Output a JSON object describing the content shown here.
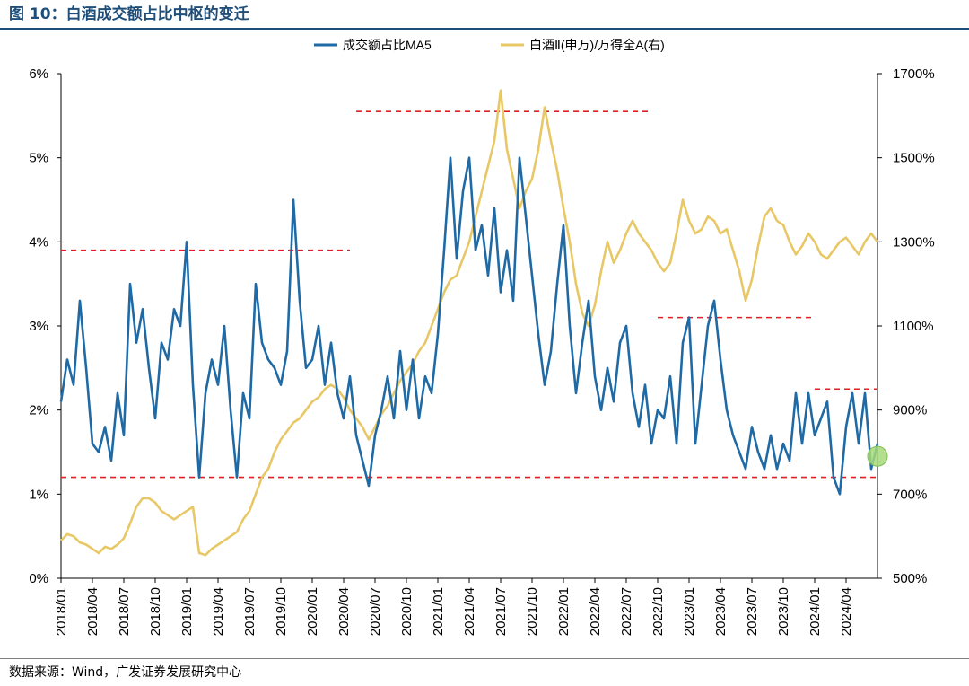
{
  "figure": {
    "title": "图 10：白酒成交额占比中枢的变迁",
    "source": "数据来源：Wind，广发证券发展研究中心"
  },
  "chart_data": {
    "type": "line",
    "legend_position": "top-center",
    "grid": false,
    "x_ticks": [
      "2018/01",
      "2018/04",
      "2018/07",
      "2018/10",
      "2019/01",
      "2019/04",
      "2019/07",
      "2019/10",
      "2020/01",
      "2020/04",
      "2020/07",
      "2020/10",
      "2021/01",
      "2021/04",
      "2021/07",
      "2021/10",
      "2022/01",
      "2022/04",
      "2022/07",
      "2022/10",
      "2023/01",
      "2023/04",
      "2023/07",
      "2023/10",
      "2024/01",
      "2024/04"
    ],
    "x_range": [
      2018.0,
      2024.5
    ],
    "y_left": {
      "ticks": [
        "0%",
        "1%",
        "2%",
        "3%",
        "4%",
        "5%",
        "6%"
      ],
      "range": [
        0,
        6
      ]
    },
    "y_right": {
      "ticks": [
        "500%",
        "700%",
        "900%",
        "1100%",
        "1300%",
        "1500%",
        "1700%"
      ],
      "range": [
        500,
        1700
      ]
    },
    "series": [
      {
        "name": "成交额占比MA5",
        "axis": "left",
        "color": "#1f6aa5",
        "points": [
          [
            2018.0,
            2.1
          ],
          [
            2018.05,
            2.6
          ],
          [
            2018.1,
            2.3
          ],
          [
            2018.15,
            3.3
          ],
          [
            2018.2,
            2.5
          ],
          [
            2018.25,
            1.6
          ],
          [
            2018.3,
            1.5
          ],
          [
            2018.35,
            1.8
          ],
          [
            2018.4,
            1.4
          ],
          [
            2018.45,
            2.2
          ],
          [
            2018.5,
            1.7
          ],
          [
            2018.55,
            3.5
          ],
          [
            2018.6,
            2.8
          ],
          [
            2018.65,
            3.2
          ],
          [
            2018.7,
            2.5
          ],
          [
            2018.75,
            1.9
          ],
          [
            2018.8,
            2.8
          ],
          [
            2018.85,
            2.6
          ],
          [
            2018.9,
            3.2
          ],
          [
            2018.95,
            3.0
          ],
          [
            2019.0,
            4.0
          ],
          [
            2019.05,
            2.3
          ],
          [
            2019.1,
            1.2
          ],
          [
            2019.15,
            2.2
          ],
          [
            2019.2,
            2.6
          ],
          [
            2019.25,
            2.3
          ],
          [
            2019.3,
            3.0
          ],
          [
            2019.35,
            2.0
          ],
          [
            2019.4,
            1.2
          ],
          [
            2019.45,
            2.2
          ],
          [
            2019.5,
            1.9
          ],
          [
            2019.55,
            3.5
          ],
          [
            2019.6,
            2.8
          ],
          [
            2019.65,
            2.6
          ],
          [
            2019.7,
            2.5
          ],
          [
            2019.75,
            2.3
          ],
          [
            2019.8,
            2.7
          ],
          [
            2019.85,
            4.5
          ],
          [
            2019.9,
            3.3
          ],
          [
            2019.95,
            2.5
          ],
          [
            2020.0,
            2.6
          ],
          [
            2020.05,
            3.0
          ],
          [
            2020.1,
            2.3
          ],
          [
            2020.15,
            2.8
          ],
          [
            2020.2,
            2.2
          ],
          [
            2020.25,
            1.9
          ],
          [
            2020.3,
            2.4
          ],
          [
            2020.35,
            1.7
          ],
          [
            2020.4,
            1.4
          ],
          [
            2020.45,
            1.1
          ],
          [
            2020.5,
            1.7
          ],
          [
            2020.55,
            2.0
          ],
          [
            2020.6,
            2.4
          ],
          [
            2020.65,
            1.9
          ],
          [
            2020.7,
            2.7
          ],
          [
            2020.75,
            2.0
          ],
          [
            2020.8,
            2.6
          ],
          [
            2020.85,
            1.9
          ],
          [
            2020.9,
            2.4
          ],
          [
            2020.95,
            2.2
          ],
          [
            2021.0,
            2.9
          ],
          [
            2021.05,
            3.9
          ],
          [
            2021.1,
            5.0
          ],
          [
            2021.15,
            3.8
          ],
          [
            2021.2,
            4.6
          ],
          [
            2021.25,
            5.0
          ],
          [
            2021.3,
            3.9
          ],
          [
            2021.35,
            4.2
          ],
          [
            2021.4,
            3.6
          ],
          [
            2021.45,
            4.4
          ],
          [
            2021.5,
            3.4
          ],
          [
            2021.55,
            3.9
          ],
          [
            2021.6,
            3.3
          ],
          [
            2021.65,
            5.0
          ],
          [
            2021.7,
            4.3
          ],
          [
            2021.75,
            3.6
          ],
          [
            2021.8,
            2.9
          ],
          [
            2021.85,
            2.3
          ],
          [
            2021.9,
            2.7
          ],
          [
            2021.95,
            3.5
          ],
          [
            2022.0,
            4.2
          ],
          [
            2022.05,
            3.0
          ],
          [
            2022.1,
            2.2
          ],
          [
            2022.15,
            2.8
          ],
          [
            2022.2,
            3.3
          ],
          [
            2022.25,
            2.4
          ],
          [
            2022.3,
            2.0
          ],
          [
            2022.35,
            2.5
          ],
          [
            2022.4,
            2.1
          ],
          [
            2022.45,
            2.8
          ],
          [
            2022.5,
            3.0
          ],
          [
            2022.55,
            2.2
          ],
          [
            2022.6,
            1.8
          ],
          [
            2022.65,
            2.3
          ],
          [
            2022.7,
            1.6
          ],
          [
            2022.75,
            2.0
          ],
          [
            2022.8,
            1.9
          ],
          [
            2022.85,
            2.4
          ],
          [
            2022.9,
            1.6
          ],
          [
            2022.95,
            2.8
          ],
          [
            2023.0,
            3.1
          ],
          [
            2023.05,
            1.6
          ],
          [
            2023.1,
            2.3
          ],
          [
            2023.15,
            3.0
          ],
          [
            2023.2,
            3.3
          ],
          [
            2023.25,
            2.6
          ],
          [
            2023.3,
            2.0
          ],
          [
            2023.35,
            1.7
          ],
          [
            2023.4,
            1.5
          ],
          [
            2023.45,
            1.3
          ],
          [
            2023.5,
            1.8
          ],
          [
            2023.55,
            1.5
          ],
          [
            2023.6,
            1.3
          ],
          [
            2023.65,
            1.7
          ],
          [
            2023.7,
            1.3
          ],
          [
            2023.75,
            1.6
          ],
          [
            2023.8,
            1.4
          ],
          [
            2023.85,
            2.2
          ],
          [
            2023.9,
            1.6
          ],
          [
            2023.95,
            2.2
          ],
          [
            2024.0,
            1.7
          ],
          [
            2024.05,
            1.9
          ],
          [
            2024.1,
            2.1
          ],
          [
            2024.15,
            1.2
          ],
          [
            2024.2,
            1.0
          ],
          [
            2024.25,
            1.8
          ],
          [
            2024.3,
            2.2
          ],
          [
            2024.35,
            1.6
          ],
          [
            2024.4,
            2.2
          ],
          [
            2024.45,
            1.3
          ],
          [
            2024.5,
            1.6
          ]
        ]
      },
      {
        "name": "白酒Ⅱ(申万)/万得全A(右)",
        "axis": "right",
        "color": "#e8c766",
        "points": [
          [
            2018.0,
            590
          ],
          [
            2018.05,
            605
          ],
          [
            2018.1,
            600
          ],
          [
            2018.15,
            585
          ],
          [
            2018.2,
            580
          ],
          [
            2018.25,
            570
          ],
          [
            2018.3,
            560
          ],
          [
            2018.35,
            575
          ],
          [
            2018.4,
            570
          ],
          [
            2018.45,
            580
          ],
          [
            2018.5,
            595
          ],
          [
            2018.55,
            630
          ],
          [
            2018.6,
            670
          ],
          [
            2018.65,
            690
          ],
          [
            2018.7,
            690
          ],
          [
            2018.75,
            680
          ],
          [
            2018.8,
            660
          ],
          [
            2018.85,
            650
          ],
          [
            2018.9,
            640
          ],
          [
            2018.95,
            650
          ],
          [
            2019.0,
            660
          ],
          [
            2019.05,
            670
          ],
          [
            2019.1,
            560
          ],
          [
            2019.15,
            555
          ],
          [
            2019.2,
            570
          ],
          [
            2019.25,
            580
          ],
          [
            2019.3,
            590
          ],
          [
            2019.35,
            600
          ],
          [
            2019.4,
            610
          ],
          [
            2019.45,
            640
          ],
          [
            2019.5,
            660
          ],
          [
            2019.55,
            700
          ],
          [
            2019.6,
            740
          ],
          [
            2019.65,
            760
          ],
          [
            2019.7,
            800
          ],
          [
            2019.75,
            830
          ],
          [
            2019.8,
            850
          ],
          [
            2019.85,
            870
          ],
          [
            2019.9,
            880
          ],
          [
            2019.95,
            900
          ],
          [
            2020.0,
            920
          ],
          [
            2020.05,
            930
          ],
          [
            2020.1,
            950
          ],
          [
            2020.15,
            960
          ],
          [
            2020.2,
            950
          ],
          [
            2020.25,
            930
          ],
          [
            2020.3,
            900
          ],
          [
            2020.35,
            880
          ],
          [
            2020.4,
            860
          ],
          [
            2020.45,
            830
          ],
          [
            2020.5,
            860
          ],
          [
            2020.55,
            890
          ],
          [
            2020.6,
            910
          ],
          [
            2020.65,
            940
          ],
          [
            2020.7,
            970
          ],
          [
            2020.75,
            990
          ],
          [
            2020.8,
            1010
          ],
          [
            2020.85,
            1040
          ],
          [
            2020.9,
            1060
          ],
          [
            2020.95,
            1100
          ],
          [
            2021.0,
            1140
          ],
          [
            2021.05,
            1180
          ],
          [
            2021.1,
            1210
          ],
          [
            2021.15,
            1220
          ],
          [
            2021.2,
            1260
          ],
          [
            2021.25,
            1300
          ],
          [
            2021.3,
            1360
          ],
          [
            2021.35,
            1420
          ],
          [
            2021.4,
            1480
          ],
          [
            2021.45,
            1540
          ],
          [
            2021.5,
            1660
          ],
          [
            2021.55,
            1520
          ],
          [
            2021.6,
            1450
          ],
          [
            2021.65,
            1380
          ],
          [
            2021.7,
            1420
          ],
          [
            2021.75,
            1450
          ],
          [
            2021.8,
            1520
          ],
          [
            2021.85,
            1620
          ],
          [
            2021.9,
            1540
          ],
          [
            2021.95,
            1470
          ],
          [
            2022.0,
            1380
          ],
          [
            2022.05,
            1300
          ],
          [
            2022.1,
            1200
          ],
          [
            2022.15,
            1130
          ],
          [
            2022.2,
            1100
          ],
          [
            2022.25,
            1150
          ],
          [
            2022.3,
            1230
          ],
          [
            2022.35,
            1300
          ],
          [
            2022.4,
            1250
          ],
          [
            2022.45,
            1280
          ],
          [
            2022.5,
            1320
          ],
          [
            2022.55,
            1350
          ],
          [
            2022.6,
            1320
          ],
          [
            2022.65,
            1300
          ],
          [
            2022.7,
            1280
          ],
          [
            2022.75,
            1250
          ],
          [
            2022.8,
            1230
          ],
          [
            2022.85,
            1250
          ],
          [
            2022.9,
            1320
          ],
          [
            2022.95,
            1400
          ],
          [
            2023.0,
            1350
          ],
          [
            2023.05,
            1320
          ],
          [
            2023.1,
            1330
          ],
          [
            2023.15,
            1360
          ],
          [
            2023.2,
            1350
          ],
          [
            2023.25,
            1320
          ],
          [
            2023.3,
            1330
          ],
          [
            2023.35,
            1280
          ],
          [
            2023.4,
            1230
          ],
          [
            2023.45,
            1160
          ],
          [
            2023.5,
            1210
          ],
          [
            2023.55,
            1290
          ],
          [
            2023.6,
            1360
          ],
          [
            2023.65,
            1380
          ],
          [
            2023.7,
            1350
          ],
          [
            2023.75,
            1340
          ],
          [
            2023.8,
            1300
          ],
          [
            2023.85,
            1270
          ],
          [
            2023.9,
            1290
          ],
          [
            2023.95,
            1320
          ],
          [
            2024.0,
            1300
          ],
          [
            2024.05,
            1270
          ],
          [
            2024.1,
            1260
          ],
          [
            2024.15,
            1280
          ],
          [
            2024.2,
            1300
          ],
          [
            2024.25,
            1310
          ],
          [
            2024.3,
            1290
          ],
          [
            2024.35,
            1270
          ],
          [
            2024.4,
            1300
          ],
          [
            2024.45,
            1320
          ],
          [
            2024.5,
            1300
          ]
        ]
      }
    ],
    "reference_lines": [
      {
        "axis": "left",
        "y": 3.9,
        "x_start": 2018.0,
        "x_end": 2020.3
      },
      {
        "axis": "left",
        "y": 5.55,
        "x_start": 2020.35,
        "x_end": 2022.7
      },
      {
        "axis": "left",
        "y": 3.1,
        "x_start": 2022.75,
        "x_end": 2024.0
      },
      {
        "axis": "left",
        "y": 2.25,
        "x_start": 2024.0,
        "x_end": 2024.5
      },
      {
        "axis": "left",
        "y": 1.2,
        "x_start": 2018.0,
        "x_end": 2024.5
      }
    ],
    "highlight_marker": {
      "axis": "left",
      "x": 2024.5,
      "y": 1.45,
      "color": "#a6d97a"
    }
  }
}
